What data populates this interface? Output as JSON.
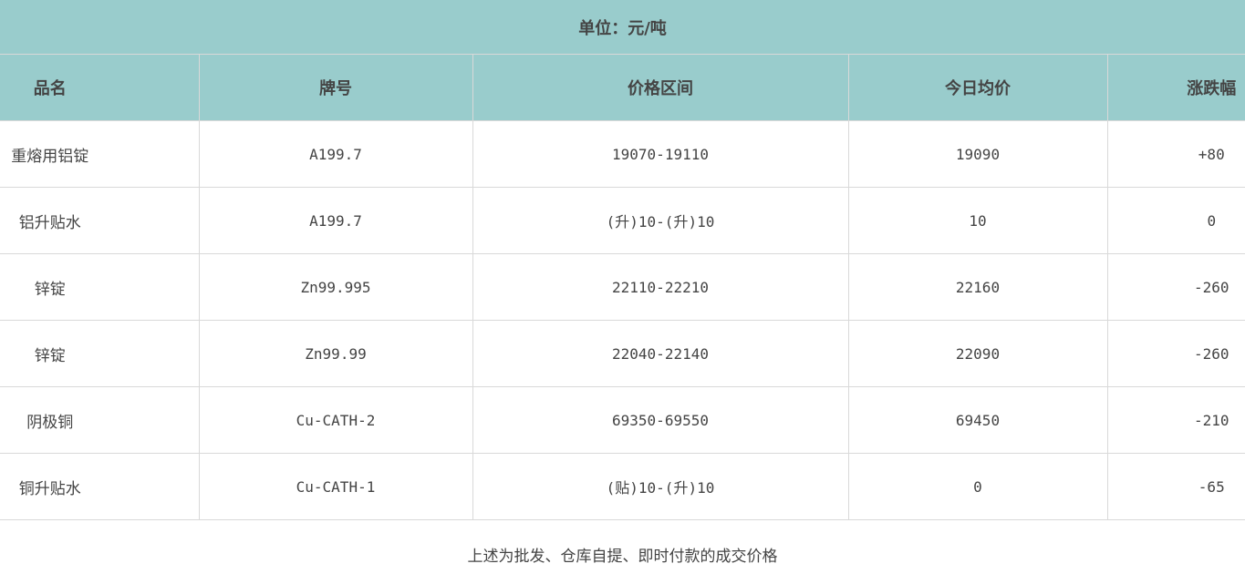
{
  "unit": "单位：元/吨",
  "headers": [
    "品名",
    "牌号",
    "价格区间",
    "今日均价",
    "涨跌幅"
  ],
  "rows": [
    {
      "name": "重熔用铝锭",
      "grade": "A199.7",
      "range": "19070-19110",
      "avg": "19090",
      "change": "+80"
    },
    {
      "name": "铝升贴水",
      "grade": "A199.7",
      "range": "(升)10-(升)10",
      "avg": "10",
      "change": "0"
    },
    {
      "name": "锌锭",
      "grade": "Zn99.995",
      "range": "22110-22210",
      "avg": "22160",
      "change": "-260"
    },
    {
      "name": "锌锭",
      "grade": "Zn99.99",
      "range": "22040-22140",
      "avg": "22090",
      "change": "-260"
    },
    {
      "name": "阴极铜",
      "grade": "Cu-CATH-2",
      "range": "69350-69550",
      "avg": "69450",
      "change": "-210"
    },
    {
      "name": "铜升贴水",
      "grade": "Cu-CATH-1",
      "range": "(贴)10-(升)10",
      "avg": "0",
      "change": "-65"
    }
  ],
  "note": "上述为批发、仓库自提、即时付款的成交价格",
  "colors": {
    "header_bg": "#99cccc",
    "border": "#d9d9d9"
  }
}
